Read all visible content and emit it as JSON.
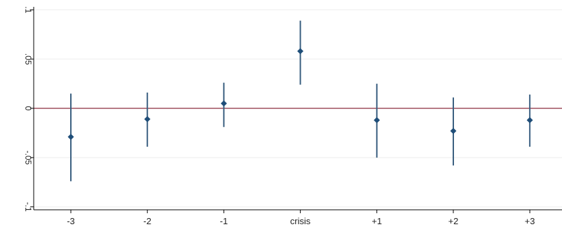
{
  "chart_data": {
    "type": "scatter",
    "subtype": "coefficient-plot-with-confidence-intervals",
    "title": "",
    "xlabel": "",
    "ylabel": "",
    "categories": [
      "-3",
      "-2",
      "-1",
      "crisis",
      "+1",
      "+2",
      "+3"
    ],
    "points": [
      {
        "x": "-3",
        "y": -0.029,
        "lo": -0.074,
        "hi": 0.015
      },
      {
        "x": "-2",
        "y": -0.011,
        "lo": -0.039,
        "hi": 0.016
      },
      {
        "x": "-1",
        "y": 0.005,
        "lo": -0.019,
        "hi": 0.026
      },
      {
        "x": "crisis",
        "y": 0.058,
        "lo": 0.024,
        "hi": 0.089
      },
      {
        "x": "+1",
        "y": -0.012,
        "lo": -0.05,
        "hi": 0.025
      },
      {
        "x": "+2",
        "y": -0.023,
        "lo": -0.058,
        "hi": 0.011
      },
      {
        "x": "+3",
        "y": -0.012,
        "lo": -0.039,
        "hi": 0.014
      }
    ],
    "ylim": [
      -0.103,
      0.103
    ],
    "yticks": [
      {
        "value": -0.1,
        "label": "-.1"
      },
      {
        "value": -0.05,
        "label": "-.05"
      },
      {
        "value": 0,
        "label": "0"
      },
      {
        "value": 0.05,
        "label": ".05"
      },
      {
        "value": 0.1,
        "label": ".1"
      }
    ],
    "reference_line": {
      "y": 0,
      "color": "#8b2a3c"
    },
    "grid": true,
    "legend": "none",
    "colors": {
      "marker": "#1f4e79",
      "ci": "#3a5f80",
      "grid": "#eeeeee",
      "axis": "#000000"
    }
  }
}
